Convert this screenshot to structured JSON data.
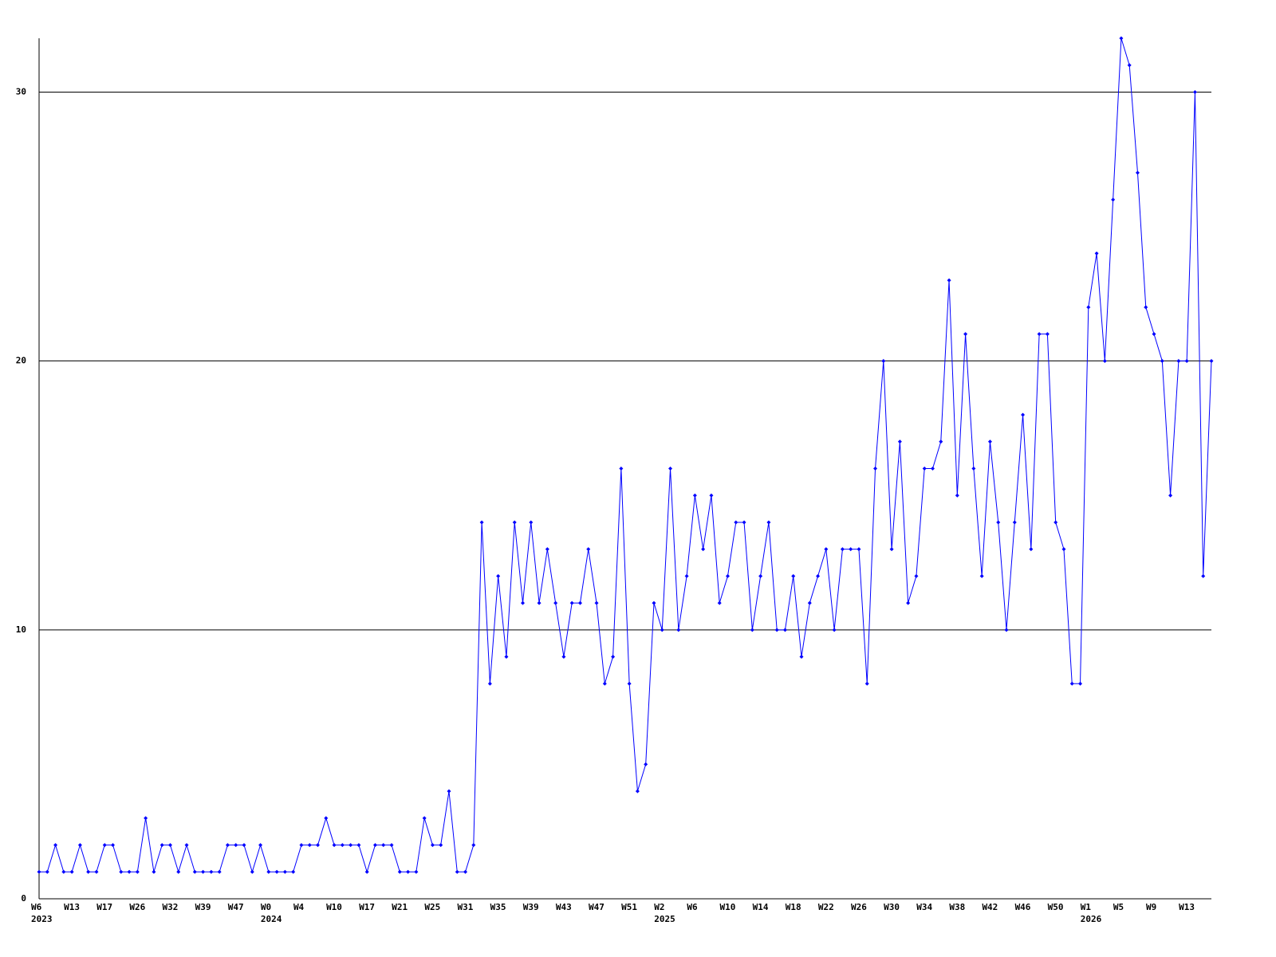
{
  "chart_data": {
    "type": "line",
    "categories": [
      "W6",
      null,
      null,
      null,
      "W13",
      null,
      null,
      null,
      "W17",
      null,
      null,
      null,
      "W26",
      null,
      null,
      null,
      "W32",
      null,
      null,
      null,
      "W39",
      null,
      null,
      null,
      "W47",
      null,
      null,
      null,
      "W0",
      null,
      null,
      null,
      "W4",
      null,
      null,
      null,
      "W10",
      null,
      null,
      null,
      "W17",
      null,
      null,
      null,
      "W21",
      null,
      null,
      null,
      "W25",
      null,
      null,
      null,
      "W31",
      null,
      null,
      null,
      "W35",
      null,
      null,
      null,
      "W39",
      null,
      null,
      null,
      "W43",
      null,
      null,
      null,
      "W47",
      null,
      null,
      null,
      "W51",
      null,
      null,
      null,
      "W2",
      null,
      null,
      null,
      "W6",
      null,
      null,
      null,
      "W10",
      null,
      null,
      null,
      "W14",
      null,
      null,
      null,
      "W18",
      null,
      null,
      null,
      "W22",
      null,
      null,
      null,
      "W26",
      null,
      null,
      null,
      "W30",
      null,
      null,
      null,
      "W34",
      null,
      null,
      null,
      "W38",
      null,
      null,
      null,
      "W42",
      null,
      null,
      null,
      "W46",
      null,
      null,
      null,
      "W50",
      null,
      null,
      null,
      "W1",
      null,
      null,
      null,
      "W5",
      null,
      null,
      null,
      "W9",
      null,
      null,
      null,
      "W13",
      null,
      null,
      null
    ],
    "year_labels": [
      "2023",
      null,
      null,
      null,
      null,
      null,
      null,
      null,
      null,
      null,
      null,
      null,
      null,
      null,
      null,
      null,
      null,
      null,
      null,
      null,
      null,
      null,
      null,
      null,
      null,
      null,
      null,
      null,
      "2024",
      null,
      null,
      null,
      null,
      null,
      null,
      null,
      null,
      null,
      null,
      null,
      null,
      null,
      null,
      null,
      null,
      null,
      null,
      null,
      null,
      null,
      null,
      null,
      null,
      null,
      null,
      null,
      null,
      null,
      null,
      null,
      null,
      null,
      null,
      null,
      null,
      null,
      null,
      null,
      null,
      null,
      null,
      null,
      null,
      null,
      null,
      null,
      "2025",
      null,
      null,
      null,
      null,
      null,
      null,
      null,
      null,
      null,
      null,
      null,
      null,
      null,
      null,
      null,
      null,
      null,
      null,
      null,
      null,
      null,
      null,
      null,
      null,
      null,
      null,
      null,
      null,
      null,
      null,
      null,
      null,
      null,
      null,
      null,
      null,
      null,
      null,
      null,
      null,
      null,
      null,
      null,
      null,
      null,
      null,
      null,
      null,
      null,
      null,
      null,
      "2026",
      null,
      null,
      null,
      null,
      null,
      null,
      null,
      null,
      null,
      null,
      null,
      null,
      null,
      null,
      null
    ],
    "series": [
      {
        "color": "#0000ff",
        "values": [
          1,
          1,
          2,
          1,
          1,
          2,
          1,
          1,
          2,
          2,
          1,
          1,
          1,
          3,
          1,
          2,
          2,
          1,
          2,
          1,
          1,
          1,
          1,
          2,
          2,
          2,
          1,
          2,
          1,
          1,
          1,
          1,
          2,
          2,
          2,
          3,
          2,
          2,
          2,
          2,
          1,
          2,
          2,
          2,
          1,
          1,
          1,
          3,
          2,
          2,
          4,
          1,
          1,
          2,
          14,
          8,
          12,
          9,
          14,
          11,
          14,
          11,
          13,
          11,
          9,
          11,
          11,
          13,
          11,
          8,
          9,
          16,
          8,
          4,
          5,
          11,
          10,
          16,
          10,
          12,
          15,
          13,
          15,
          11,
          12,
          14,
          14,
          10,
          12,
          14,
          10,
          10,
          12,
          9,
          11,
          12,
          13,
          10,
          13,
          13,
          13,
          8,
          16,
          20,
          13,
          17,
          11,
          12,
          16,
          16,
          17,
          23,
          15,
          21,
          16,
          12,
          17,
          14,
          10,
          14,
          18,
          13,
          21,
          21,
          14,
          13,
          8,
          8,
          22,
          24,
          20,
          26,
          32,
          31,
          27,
          22,
          21,
          20,
          15,
          20,
          20,
          30,
          12,
          20
        ]
      }
    ],
    "ylim": [
      0,
      32
    ],
    "yticks": [
      0,
      10,
      20,
      30
    ],
    "grid": true
  }
}
